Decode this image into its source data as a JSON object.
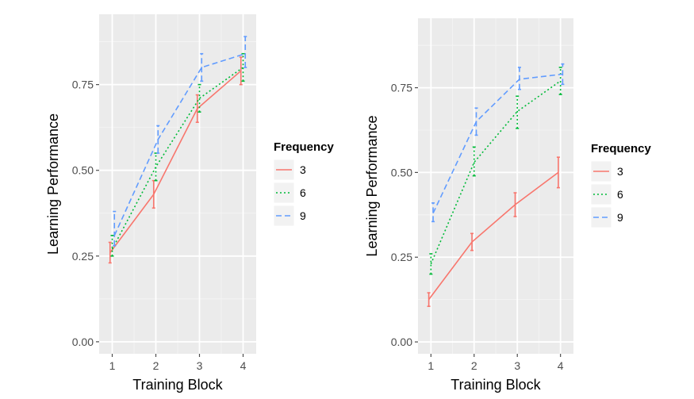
{
  "chart_data": [
    {
      "type": "line",
      "title": "",
      "xlabel": "Training Block",
      "ylabel": "Learning Performance",
      "x": [
        1,
        2,
        3,
        4
      ],
      "xlim": [
        0.7,
        4.3
      ],
      "ylim": [
        -0.035,
        0.955
      ],
      "yticks": [
        0.0,
        0.25,
        0.5,
        0.75
      ],
      "ytick_labels": [
        "0.00",
        "0.25",
        "0.50",
        "0.75"
      ],
      "grid": true,
      "legend": {
        "title": "Frequency",
        "position": "right"
      },
      "series": [
        {
          "name": "3",
          "color": "#F8766D",
          "dash": "solid",
          "offset": -0.05,
          "values": [
            0.26,
            0.43,
            0.68,
            0.79
          ],
          "lower": [
            0.23,
            0.39,
            0.64,
            0.75
          ],
          "upper": [
            0.29,
            0.47,
            0.72,
            0.83
          ]
        },
        {
          "name": "6",
          "color": "#00BA38",
          "dash": "dot",
          "offset": 0.0,
          "values": [
            0.27,
            0.51,
            0.71,
            0.8
          ],
          "lower": [
            0.25,
            0.47,
            0.67,
            0.76
          ],
          "upper": [
            0.31,
            0.55,
            0.75,
            0.84
          ]
        },
        {
          "name": "9",
          "color": "#619CFF",
          "dash": "dash",
          "offset": 0.05,
          "values": [
            0.31,
            0.59,
            0.8,
            0.84
          ],
          "lower": [
            0.28,
            0.55,
            0.76,
            0.8
          ],
          "upper": [
            0.38,
            0.63,
            0.84,
            0.89
          ]
        }
      ]
    },
    {
      "type": "line",
      "title": "",
      "xlabel": "Training Block",
      "ylabel": "Learning Performance",
      "x": [
        1,
        2,
        3,
        4
      ],
      "xlim": [
        0.7,
        4.3
      ],
      "ylim": [
        -0.035,
        0.955
      ],
      "yticks": [
        0.0,
        0.25,
        0.5,
        0.75
      ],
      "ytick_labels": [
        "0.00",
        "0.25",
        "0.50",
        "0.75"
      ],
      "grid": true,
      "legend": {
        "title": "Frequency",
        "position": "right"
      },
      "series": [
        {
          "name": "3",
          "color": "#F8766D",
          "dash": "solid",
          "offset": -0.05,
          "values": [
            0.125,
            0.295,
            0.405,
            0.5
          ],
          "lower": [
            0.105,
            0.27,
            0.37,
            0.455
          ],
          "upper": [
            0.145,
            0.32,
            0.44,
            0.545
          ]
        },
        {
          "name": "6",
          "color": "#00BA38",
          "dash": "dot",
          "offset": 0.0,
          "values": [
            0.23,
            0.53,
            0.68,
            0.77
          ],
          "lower": [
            0.2,
            0.49,
            0.63,
            0.73
          ],
          "upper": [
            0.26,
            0.575,
            0.725,
            0.81
          ]
        },
        {
          "name": "9",
          "color": "#619CFF",
          "dash": "dash",
          "offset": 0.05,
          "values": [
            0.38,
            0.65,
            0.775,
            0.79
          ],
          "lower": [
            0.355,
            0.61,
            0.745,
            0.76
          ],
          "upper": [
            0.41,
            0.69,
            0.81,
            0.82
          ]
        }
      ]
    }
  ]
}
